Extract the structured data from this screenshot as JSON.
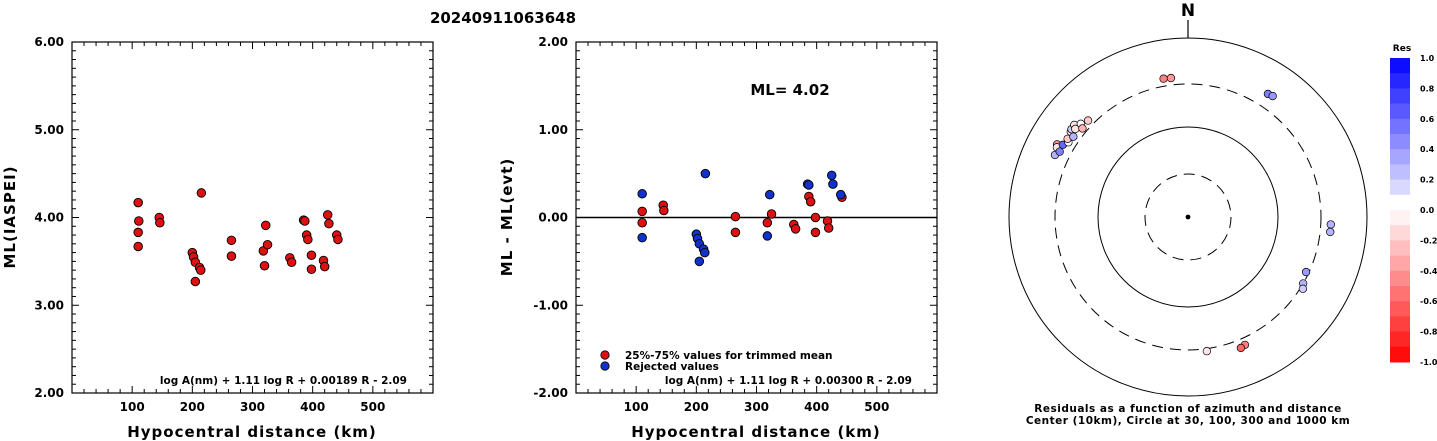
{
  "chart_data": [
    {
      "type": "scatter",
      "title": "20240911063648",
      "xlabel": "Hypocentral distance (km)",
      "ylabel": "ML(IASPEI)",
      "xlim": [
        0,
        600
      ],
      "ylim": [
        2.0,
        6.0
      ],
      "x_ticks": [
        "100",
        "200",
        "300",
        "400",
        "500"
      ],
      "y_ticks": [
        "2.00",
        "3.00",
        "4.00",
        "5.00",
        "6.00"
      ],
      "formula": "log A(nm) + 1.11 log R + 0.00189 R - 2.09",
      "series": [
        {
          "color": "#dd1111",
          "points": [
            [
              110,
              4.17
            ],
            [
              111,
              3.96
            ],
            [
              110,
              3.83
            ],
            [
              110,
              3.67
            ],
            [
              145,
              4.0
            ],
            [
              146,
              3.94
            ],
            [
              200,
              3.6
            ],
            [
              202,
              3.55
            ],
            [
              205,
              3.49
            ],
            [
              205,
              3.27
            ],
            [
              212,
              3.43
            ],
            [
              214,
              3.4
            ],
            [
              215,
              4.28
            ],
            [
              265,
              3.74
            ],
            [
              265,
              3.56
            ],
            [
              318,
              3.62
            ],
            [
              320,
              3.45
            ],
            [
              322,
              3.91
            ],
            [
              325,
              3.69
            ],
            [
              362,
              3.54
            ],
            [
              365,
              3.49
            ],
            [
              385,
              3.97
            ],
            [
              387,
              3.96
            ],
            [
              390,
              3.8
            ],
            [
              392,
              3.75
            ],
            [
              398,
              3.57
            ],
            [
              398,
              3.41
            ],
            [
              418,
              3.51
            ],
            [
              420,
              3.44
            ],
            [
              425,
              4.03
            ],
            [
              427,
              3.93
            ],
            [
              440,
              3.8
            ],
            [
              442,
              3.75
            ]
          ]
        }
      ]
    },
    {
      "type": "scatter",
      "xlabel": "Hypocentral distance (km)",
      "ylabel": "ML - ML(evt)",
      "xlim": [
        0,
        600
      ],
      "ylim": [
        -2.0,
        2.0
      ],
      "x_ticks": [
        "100",
        "200",
        "300",
        "400",
        "500"
      ],
      "y_ticks": [
        "-2.00",
        "-1.00",
        "0.00",
        "1.00",
        "2.00"
      ],
      "ml_label": "ML= 4.02",
      "formula": "log A(nm) + 1.11 log R + 0.00300 R - 2.09",
      "legend": [
        "25%-75% values for trimmed mean",
        "Rejected values"
      ],
      "legend_colors": [
        "#dd1111",
        "#1133cc"
      ],
      "series": [
        {
          "name": "25%-75% values for trimmed mean",
          "color": "#dd1111",
          "points": [
            [
              110,
              0.07
            ],
            [
              110,
              -0.06
            ],
            [
              145,
              0.14
            ],
            [
              146,
              0.08
            ],
            [
              265,
              0.01
            ],
            [
              265,
              -0.17
            ],
            [
              318,
              -0.06
            ],
            [
              325,
              0.04
            ],
            [
              362,
              -0.08
            ],
            [
              365,
              -0.13
            ],
            [
              387,
              0.24
            ],
            [
              390,
              0.18
            ],
            [
              398,
              0.0
            ],
            [
              398,
              -0.17
            ],
            [
              418,
              -0.04
            ],
            [
              420,
              -0.12
            ],
            [
              442,
              0.23
            ]
          ]
        },
        {
          "name": "Rejected values",
          "color": "#1133cc",
          "points": [
            [
              110,
              0.27
            ],
            [
              110,
              -0.23
            ],
            [
              200,
              -0.19
            ],
            [
              202,
              -0.24
            ],
            [
              205,
              -0.3
            ],
            [
              205,
              -0.5
            ],
            [
              212,
              -0.36
            ],
            [
              214,
              -0.4
            ],
            [
              215,
              0.5
            ],
            [
              318,
              -0.21
            ],
            [
              322,
              0.26
            ],
            [
              385,
              0.38
            ],
            [
              387,
              0.37
            ],
            [
              425,
              0.48
            ],
            [
              427,
              0.38
            ],
            [
              440,
              0.26
            ]
          ]
        }
      ]
    },
    {
      "type": "scatter",
      "north_label": "N",
      "caption_1": "Residuals as a function of azimuth and distance",
      "caption_2": "Center (10km), Circle at 30, 100, 300 and 1000 km",
      "colorbar_title": "Res",
      "colorbar_ticks": [
        "1.0",
        "0.8",
        "0.6",
        "0.4",
        "0.2",
        "0.0",
        "-0.2",
        "-0.4",
        "-0.6",
        "-0.8",
        "-1.0"
      ],
      "range_rings_km": [
        30,
        100,
        300,
        1000
      ],
      "stations": [
        {
          "azimuth": -61,
          "distance_km": 465,
          "residual": -0.4
        },
        {
          "azimuth": -62,
          "distance_km": 450,
          "residual": -0.1
        },
        {
          "azimuth": -65,
          "distance_km": 430,
          "residual": 0.3
        },
        {
          "azimuth": -63,
          "distance_km": 400,
          "residual": 0.5
        },
        {
          "azimuth": -60,
          "distance_km": 405,
          "residual": 0.6
        },
        {
          "azimuth": -58,
          "distance_km": 370,
          "residual": 0.0
        },
        {
          "azimuth": -54,
          "distance_km": 410,
          "residual": -0.1
        },
        {
          "azimuth": -57,
          "distance_km": 395,
          "residual": -0.2
        },
        {
          "azimuth": -53,
          "distance_km": 420,
          "residual": 0.2
        },
        {
          "azimuth": -51,
          "distance_km": 425,
          "residual": -0.1
        },
        {
          "azimuth": -52,
          "distance_km": 390,
          "residual": -0.1
        },
        {
          "azimuth": -49,
          "distance_km": 380,
          "residual": 0.0
        },
        {
          "azimuth": -55,
          "distance_km": 360,
          "residual": 0.3
        },
        {
          "azimuth": -50,
          "distance_km": 340,
          "residual": -0.3
        },
        {
          "azimuth": -46,
          "distance_km": 350,
          "residual": -0.2
        },
        {
          "azimuth": -10,
          "distance_km": 365,
          "residual": -0.5
        },
        {
          "azimuth": -7,
          "distance_km": 360,
          "residual": -0.4
        },
        {
          "azimuth": 33,
          "distance_km": 430,
          "residual": 0.5
        },
        {
          "azimuth": 35,
          "distance_km": 440,
          "residual": 0.4
        },
        {
          "azimuth": 93,
          "distance_km": 390,
          "residual": 0.3
        },
        {
          "azimuth": 96,
          "distance_km": 390,
          "residual": 0.3
        },
        {
          "azimuth": 115,
          "distance_km": 280,
          "residual": 0.4
        },
        {
          "azimuth": 120,
          "distance_km": 300,
          "residual": 0.3
        },
        {
          "azimuth": 122,
          "distance_km": 320,
          "residual": 0.2
        },
        {
          "azimuth": 156,
          "distance_km": 360,
          "residual": -0.5
        },
        {
          "azimuth": 158,
          "distance_km": 372,
          "residual": -0.6
        },
        {
          "azimuth": 172,
          "distance_km": 320,
          "residual": -0.1
        }
      ]
    }
  ]
}
